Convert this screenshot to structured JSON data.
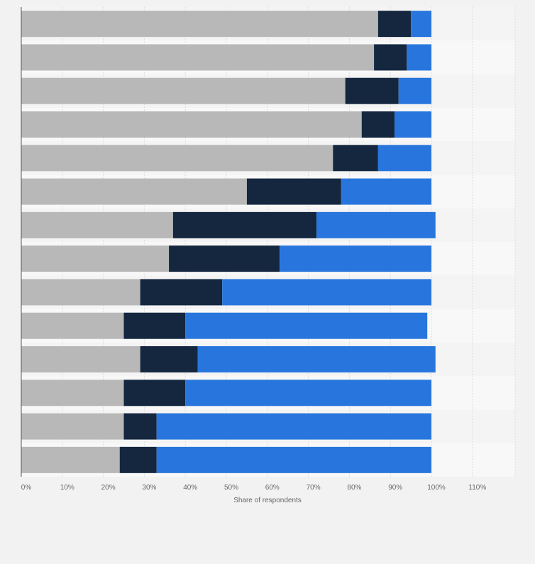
{
  "chart_data": {
    "type": "bar",
    "orientation": "horizontal",
    "stacked": true,
    "title": "",
    "xlabel": "Share of respondents",
    "ylabel": "",
    "xlim": [
      0,
      120
    ],
    "x_ticks": [
      0,
      10,
      20,
      30,
      40,
      50,
      60,
      70,
      80,
      90,
      100,
      110
    ],
    "x_tick_labels": [
      "0%",
      "10%",
      "20%",
      "30%",
      "40%",
      "50%",
      "60%",
      "70%",
      "80%",
      "90%",
      "100%",
      "110%"
    ],
    "grid": true,
    "legend": "none",
    "categories": [
      "",
      "",
      "",
      "",
      "",
      "",
      "",
      "",
      "",
      "",
      "",
      "",
      "",
      ""
    ],
    "series": [
      {
        "color": "#b8b8b8",
        "values": [
          87,
          86,
          79,
          83,
          76,
          55,
          37,
          36,
          29,
          25,
          29,
          25,
          25,
          24
        ]
      },
      {
        "color": "#14273f",
        "values": [
          8,
          8,
          13,
          8,
          11,
          23,
          35,
          27,
          20,
          15,
          14,
          15,
          8,
          9
        ]
      },
      {
        "color": "#2876dd",
        "values": [
          5,
          6,
          8,
          9,
          13,
          22,
          29,
          37,
          51,
          59,
          58,
          60,
          67,
          67
        ]
      }
    ]
  }
}
